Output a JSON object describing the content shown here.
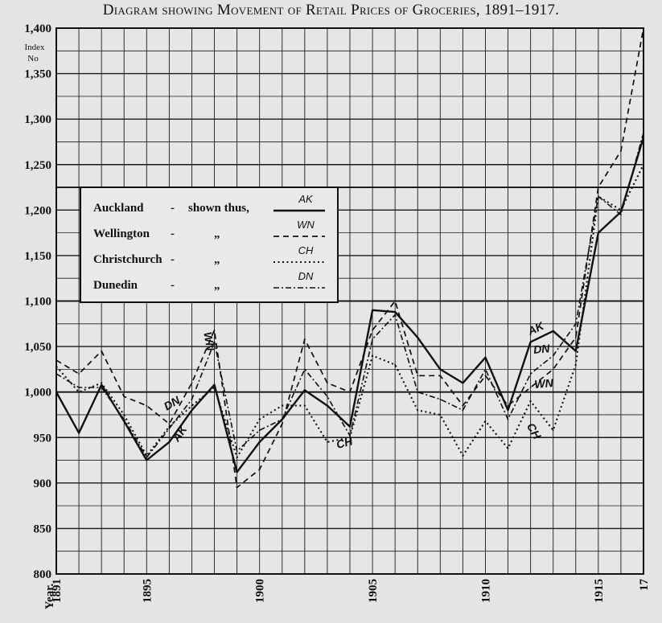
{
  "chart_data": {
    "type": "line",
    "title": "Diagram showing Movement of Retail Prices of Groceries, 1891–1917.",
    "ylabel": "Index No",
    "xlabel": "Year.",
    "ylim": [
      800,
      1400
    ],
    "xlim": [
      1891,
      1917
    ],
    "yticks": [
      "800",
      "850",
      "900",
      "950",
      "1,000",
      "1,050",
      "1,100",
      "1,150",
      "1,200",
      "1,250",
      "1,300",
      "1,350",
      "1,400"
    ],
    "xticks": [
      {
        "year": 1891,
        "label": "1891"
      },
      {
        "year": 1895,
        "label": "1895"
      },
      {
        "year": 1900,
        "label": "1900"
      },
      {
        "year": 1905,
        "label": "1905"
      },
      {
        "year": 1910,
        "label": "1910"
      },
      {
        "year": 1915,
        "label": "1915"
      },
      {
        "year": 1917,
        "label": "17"
      }
    ],
    "grid": true,
    "x": [
      1891,
      1892,
      1893,
      1894,
      1895,
      1896,
      1897,
      1898,
      1899,
      1900,
      1901,
      1902,
      1903,
      1904,
      1905,
      1906,
      1907,
      1908,
      1909,
      1910,
      1911,
      1912,
      1913,
      1914,
      1915,
      1916,
      1917
    ],
    "series": [
      {
        "name": "Auckland",
        "tag": "AK",
        "style": "solid",
        "values": [
          1000,
          955,
          1008,
          968,
          925,
          945,
          980,
          1008,
          912,
          945,
          970,
          1002,
          985,
          962,
          1090,
          1088,
          1060,
          1025,
          1010,
          1038,
          980,
          1055,
          1067,
          1045,
          1175,
          1198,
          1280
        ]
      },
      {
        "name": "Wellington",
        "tag": "WN",
        "style": "dashed",
        "values": [
          1035,
          1020,
          1045,
          995,
          985,
          965,
          1010,
          1068,
          895,
          915,
          965,
          1058,
          1010,
          1000,
          1068,
          1100,
          1018,
          1018,
          985,
          1018,
          985,
          1005,
          1025,
          1060,
          1225,
          1265,
          1400
        ]
      },
      {
        "name": "Christchurch",
        "tag": "CH",
        "style": "dotted",
        "values": [
          1028,
          1000,
          1010,
          975,
          930,
          962,
          985,
          1005,
          928,
          970,
          985,
          985,
          945,
          950,
          1040,
          1030,
          980,
          975,
          930,
          968,
          938,
          990,
          958,
          1030,
          1215,
          1200,
          1250
        ]
      },
      {
        "name": "Dunedin",
        "tag": "DN",
        "style": "dashdot",
        "values": [
          1020,
          1005,
          1005,
          970,
          928,
          960,
          992,
          1055,
          935,
          958,
          970,
          1025,
          995,
          952,
          1058,
          1085,
          1000,
          992,
          980,
          1025,
          970,
          1020,
          1040,
          1075,
          1215,
          1195,
          1285
        ]
      }
    ],
    "legend": {
      "placement": "center-left",
      "suffix": "shown thus,",
      "ditto": "„",
      "dash": "-"
    },
    "annotations": [
      {
        "text": "AK",
        "year": 1896.6,
        "value": 952,
        "rotate": -55
      },
      {
        "text": "DN",
        "year": 1896.2,
        "value": 984,
        "rotate": -30
      },
      {
        "text": "WN",
        "year": 1897.6,
        "value": 1055,
        "rotate": 80
      },
      {
        "text": "CH",
        "year": 1903.8,
        "value": 940,
        "rotate": -15
      },
      {
        "text": "AK",
        "year": 1912.3,
        "value": 1066,
        "rotate": -25
      },
      {
        "text": "DN",
        "year": 1912.5,
        "value": 1043,
        "rotate": -5
      },
      {
        "text": "WN",
        "year": 1912.6,
        "value": 1005,
        "rotate": -5
      },
      {
        "text": "CH",
        "year": 1912.0,
        "value": 955,
        "rotate": 60
      }
    ]
  }
}
